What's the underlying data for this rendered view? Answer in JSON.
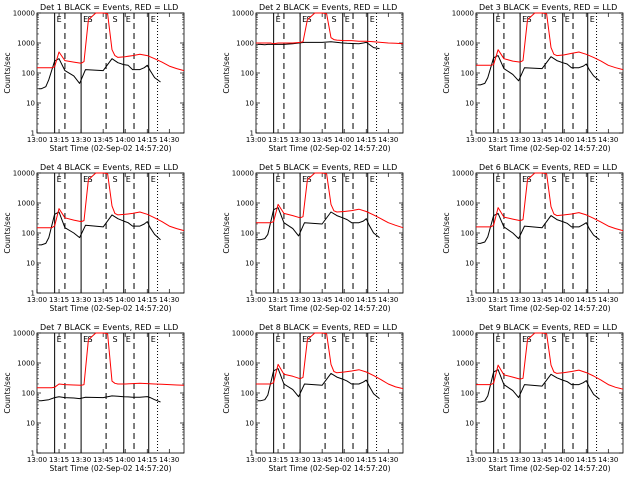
{
  "window": {
    "background": "#ffffff"
  },
  "colors": {
    "events": "#000000",
    "lld": "#ff0000",
    "axes": "#000000"
  },
  "chart_data": {
    "type": "line",
    "layout": "3x3 grid of log-scale time-series panels",
    "xlabel": "Start Time (02-Sep-02 14:57:20)",
    "ylabel": "Counts/sec",
    "x_ticks": [
      "13:00",
      "13:15",
      "13:30",
      "13:45",
      "14:00",
      "14:15",
      "14:30"
    ],
    "x_tick_minutes": [
      0,
      15,
      30,
      45,
      60,
      75,
      90
    ],
    "xlim_minutes": [
      0,
      100
    ],
    "y_scale": "log",
    "ylim": [
      1,
      10000
    ],
    "y_ticks": [
      1,
      10,
      100,
      1000,
      10000
    ],
    "y_tick_labels": [
      "1",
      "10",
      "100",
      "1000",
      "10000"
    ],
    "markers": {
      "solid_minutes": [
        12,
        30,
        59,
        76
      ],
      "dashed_minutes": [
        19,
        47,
        66
      ],
      "dotted_minutes": [
        82
      ],
      "letters": [
        {
          "text": "E",
          "minute": 12
        },
        {
          "text": "E",
          "minute": 30
        },
        {
          "text": "S",
          "minute": 33
        },
        {
          "text": "S",
          "minute": 50
        },
        {
          "text": "E",
          "minute": 59
        },
        {
          "text": "E",
          "minute": 76
        }
      ]
    },
    "panels": [
      {
        "title": "Det  1  BLACK = Events, RED = LLD",
        "detector": 1,
        "lld": {
          "x": [
            0,
            10,
            12,
            15,
            19,
            25,
            30,
            32,
            35,
            40,
            45,
            48,
            51,
            53,
            55,
            60,
            65,
            70,
            75,
            80,
            85,
            90,
            95,
            100
          ],
          "y": [
            150,
            150,
            160,
            500,
            260,
            230,
            210,
            240,
            6000,
            10000,
            10000,
            9500,
            600,
            380,
            330,
            350,
            380,
            420,
            380,
            300,
            230,
            170,
            140,
            120
          ]
        },
        "events": {
          "x": [
            1,
            3,
            6,
            8,
            12,
            15,
            19,
            25,
            29,
            33,
            45,
            51,
            55,
            59,
            62,
            65,
            70,
            73,
            75,
            77,
            80,
            84
          ],
          "y": [
            30,
            30,
            35,
            60,
            250,
            300,
            120,
            80,
            45,
            130,
            120,
            300,
            220,
            190,
            180,
            130,
            130,
            150,
            180,
            120,
            70,
            50
          ]
        }
      },
      {
        "title": "Det  2  BLACK = Events, RED = LLD",
        "detector": 2,
        "lld": {
          "x": [
            0,
            10,
            12,
            15,
            19,
            25,
            30,
            32,
            35,
            40,
            45,
            48,
            51,
            53,
            55,
            60,
            65,
            70,
            75,
            80,
            85,
            90,
            95,
            100
          ],
          "y": [
            1000,
            1000,
            950,
            1000,
            1000,
            1000,
            1050,
            1100,
            6000,
            10000,
            10000,
            9500,
            1500,
            1300,
            1250,
            1200,
            1200,
            1150,
            1150,
            1100,
            1050,
            1000,
            980,
            950
          ]
        },
        "events": {
          "x": [
            1,
            3,
            6,
            8,
            12,
            15,
            19,
            25,
            29,
            33,
            45,
            51,
            55,
            59,
            62,
            65,
            70,
            73,
            75,
            77,
            80,
            84
          ],
          "y": [
            900,
            900,
            880,
            900,
            900,
            900,
            900,
            950,
            1000,
            1050,
            1050,
            1100,
            1050,
            1000,
            980,
            960,
            950,
            1000,
            1050,
            900,
            700,
            650
          ]
        }
      },
      {
        "title": "Det  3  BLACK = Events, RED = LLD",
        "detector": 3,
        "lld": {
          "x": [
            0,
            10,
            12,
            15,
            19,
            25,
            30,
            32,
            35,
            40,
            45,
            48,
            51,
            53,
            55,
            60,
            65,
            70,
            75,
            80,
            85,
            90,
            95,
            100
          ],
          "y": [
            180,
            180,
            190,
            600,
            300,
            250,
            230,
            260,
            6000,
            10000,
            10000,
            9500,
            700,
            420,
            380,
            400,
            450,
            500,
            420,
            330,
            250,
            180,
            150,
            130
          ]
        },
        "events": {
          "x": [
            1,
            3,
            6,
            8,
            12,
            15,
            19,
            25,
            29,
            33,
            45,
            51,
            55,
            59,
            62,
            65,
            70,
            73,
            75,
            77,
            80,
            84
          ],
          "y": [
            40,
            40,
            45,
            70,
            320,
            380,
            140,
            90,
            55,
            150,
            140,
            350,
            260,
            220,
            200,
            150,
            150,
            170,
            200,
            130,
            80,
            55
          ]
        }
      },
      {
        "title": "Det  4  BLACK = Events, RED = LLD",
        "detector": 4,
        "lld": {
          "x": [
            0,
            10,
            12,
            15,
            19,
            25,
            30,
            32,
            35,
            40,
            45,
            48,
            51,
            53,
            55,
            60,
            65,
            70,
            75,
            80,
            85,
            90,
            95,
            100
          ],
          "y": [
            150,
            150,
            170,
            650,
            320,
            270,
            240,
            260,
            6000,
            10000,
            10000,
            9500,
            800,
            450,
            400,
            420,
            450,
            500,
            420,
            320,
            240,
            170,
            140,
            120
          ]
        },
        "events": {
          "x": [
            1,
            3,
            6,
            8,
            12,
            15,
            19,
            25,
            29,
            33,
            45,
            51,
            55,
            59,
            62,
            65,
            70,
            73,
            75,
            77,
            80,
            84
          ],
          "y": [
            40,
            40,
            45,
            70,
            420,
            500,
            150,
            100,
            70,
            180,
            160,
            400,
            300,
            250,
            220,
            170,
            170,
            200,
            240,
            150,
            90,
            60
          ]
        }
      },
      {
        "title": "Det  5  BLACK = Events, RED = LLD",
        "detector": 5,
        "lld": {
          "x": [
            0,
            10,
            12,
            15,
            19,
            25,
            30,
            32,
            35,
            40,
            45,
            48,
            51,
            53,
            55,
            60,
            65,
            70,
            75,
            80,
            85,
            90,
            95,
            100
          ],
          "y": [
            220,
            220,
            240,
            900,
            450,
            380,
            320,
            350,
            6000,
            10000,
            10000,
            9500,
            900,
            550,
            500,
            520,
            560,
            620,
            520,
            400,
            300,
            220,
            180,
            150
          ]
        },
        "events": {
          "x": [
            1,
            3,
            6,
            8,
            12,
            15,
            19,
            25,
            29,
            33,
            45,
            51,
            55,
            59,
            62,
            65,
            70,
            73,
            75,
            77,
            80,
            84
          ],
          "y": [
            60,
            60,
            65,
            90,
            600,
            700,
            220,
            140,
            80,
            220,
            200,
            500,
            380,
            320,
            280,
            220,
            220,
            250,
            300,
            180,
            100,
            70
          ]
        }
      },
      {
        "title": "Det  6  BLACK = Events, RED = LLD",
        "detector": 6,
        "lld": {
          "x": [
            0,
            10,
            12,
            15,
            19,
            25,
            30,
            32,
            35,
            40,
            45,
            48,
            51,
            53,
            55,
            60,
            65,
            70,
            75,
            80,
            85,
            90,
            95,
            100
          ],
          "y": [
            160,
            160,
            180,
            700,
            340,
            290,
            260,
            280,
            6000,
            10000,
            10000,
            9500,
            750,
            430,
            380,
            400,
            430,
            480,
            400,
            310,
            230,
            170,
            140,
            120
          ]
        },
        "events": {
          "x": [
            1,
            3,
            6,
            8,
            12,
            15,
            19,
            25,
            29,
            33,
            45,
            51,
            55,
            59,
            62,
            65,
            70,
            73,
            75,
            77,
            80,
            84
          ],
          "y": [
            45,
            45,
            50,
            75,
            380,
            450,
            160,
            100,
            65,
            170,
            150,
            380,
            280,
            240,
            210,
            160,
            160,
            190,
            220,
            140,
            85,
            60
          ]
        }
      },
      {
        "title": "Det  7  BLACK = Events, RED = LLD",
        "detector": 7,
        "lld": {
          "x": [
            0,
            10,
            12,
            15,
            19,
            25,
            30,
            32,
            35,
            40,
            45,
            48,
            51,
            53,
            55,
            60,
            65,
            70,
            75,
            80,
            85,
            90,
            95,
            100
          ],
          "y": [
            150,
            150,
            155,
            200,
            190,
            185,
            180,
            190,
            6000,
            10000,
            10000,
            9500,
            250,
            210,
            200,
            200,
            205,
            210,
            205,
            200,
            195,
            190,
            185,
            180
          ]
        },
        "events": {
          "x": [
            1,
            3,
            6,
            8,
            12,
            15,
            19,
            25,
            29,
            33,
            45,
            51,
            55,
            59,
            62,
            65,
            70,
            73,
            75,
            77,
            80,
            84
          ],
          "y": [
            55,
            55,
            58,
            60,
            70,
            75,
            70,
            68,
            65,
            72,
            70,
            80,
            78,
            75,
            74,
            72,
            72,
            74,
            76,
            70,
            60,
            50
          ]
        }
      },
      {
        "title": "Det  8  BLACK = Events, RED = LLD",
        "detector": 8,
        "lld": {
          "x": [
            0,
            10,
            12,
            15,
            19,
            25,
            30,
            32,
            35,
            40,
            45,
            48,
            51,
            53,
            55,
            60,
            65,
            70,
            75,
            80,
            85,
            90,
            95,
            100
          ],
          "y": [
            200,
            200,
            220,
            900,
            420,
            360,
            300,
            330,
            6000,
            10000,
            10000,
            9500,
            900,
            520,
            470,
            500,
            540,
            600,
            500,
            380,
            280,
            200,
            160,
            140
          ]
        },
        "events": {
          "x": [
            1,
            3,
            6,
            8,
            12,
            15,
            19,
            25,
            29,
            33,
            45,
            51,
            55,
            59,
            62,
            65,
            70,
            73,
            75,
            77,
            80,
            84
          ],
          "y": [
            55,
            55,
            60,
            85,
            550,
            650,
            200,
            130,
            75,
            200,
            180,
            450,
            340,
            290,
            250,
            200,
            200,
            230,
            270,
            170,
            95,
            65
          ]
        }
      },
      {
        "title": "Det  9  BLACK = Events, RED = LLD",
        "detector": 9,
        "lld": {
          "x": [
            0,
            10,
            12,
            15,
            19,
            25,
            30,
            32,
            35,
            40,
            45,
            48,
            51,
            53,
            55,
            60,
            65,
            70,
            75,
            80,
            85,
            90,
            95,
            100
          ],
          "y": [
            190,
            190,
            210,
            850,
            400,
            340,
            290,
            310,
            6000,
            10000,
            10000,
            9500,
            850,
            500,
            450,
            480,
            520,
            580,
            480,
            370,
            270,
            190,
            155,
            135
          ]
        },
        "events": {
          "x": [
            1,
            3,
            6,
            8,
            12,
            15,
            19,
            25,
            29,
            33,
            45,
            51,
            55,
            59,
            62,
            65,
            70,
            73,
            75,
            77,
            80,
            84
          ],
          "y": [
            50,
            50,
            55,
            80,
            500,
            600,
            190,
            120,
            70,
            190,
            170,
            420,
            320,
            270,
            240,
            190,
            190,
            220,
            260,
            160,
            90,
            62
          ]
        }
      }
    ]
  }
}
